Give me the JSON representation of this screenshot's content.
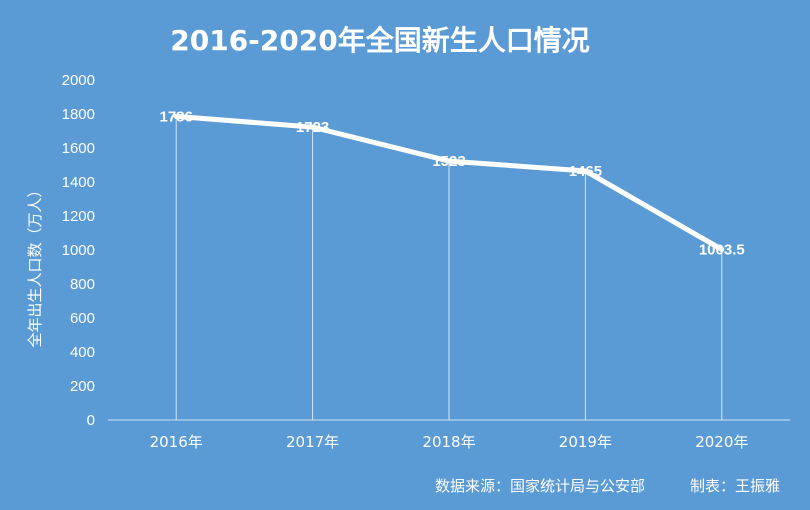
{
  "chart_data": {
    "type": "line",
    "title": "2016-2020年全国新生人口情况",
    "ylabel": "全年出生人口数（万人）",
    "xlabel": "",
    "categories": [
      "2016年",
      "2017年",
      "2018年",
      "2019年",
      "2020年"
    ],
    "series": [
      {
        "values": [
          1786,
          1723,
          1523,
          1465,
          1003.5
        ],
        "data_labels": [
          "1786",
          "1723",
          "1523",
          "1465",
          "1003.5"
        ]
      }
    ],
    "ylim": [
      0,
      2000
    ],
    "yticks": [
      "0",
      "200",
      "400",
      "600",
      "800",
      "1000",
      "1200",
      "1400",
      "1600",
      "1800",
      "2000"
    ],
    "grid": false,
    "legend": "none"
  },
  "footer": {
    "source": "数据来源：国家统计局与公安部",
    "author": "制表：王振雅"
  },
  "colors": {
    "background": "#5b9bd5",
    "line": "#ffffff",
    "text": "#ffffff"
  }
}
